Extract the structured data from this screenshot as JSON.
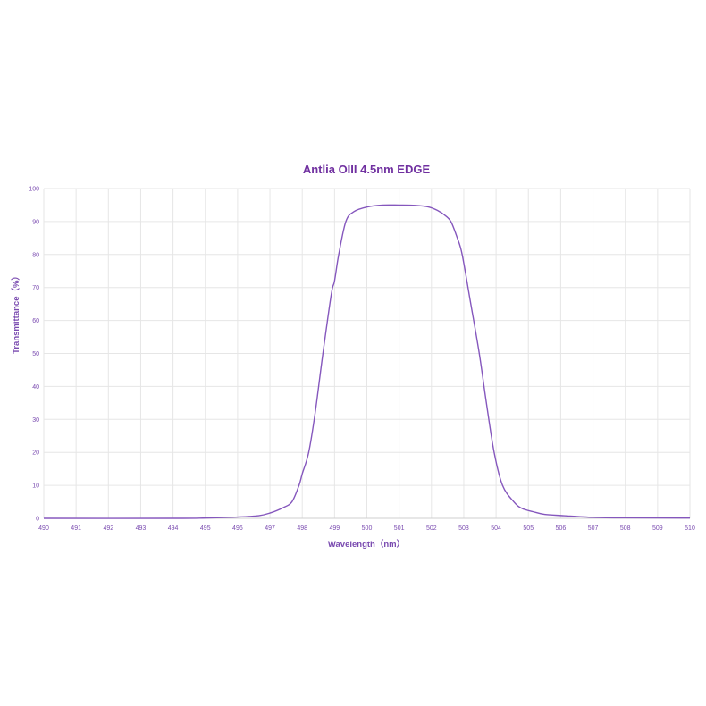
{
  "chart_data": {
    "type": "line",
    "title": "Antlia OIII 4.5nm EDGE",
    "xlabel": "Wavelength（nm）",
    "ylabel": "Transmittance（%）",
    "xlim": [
      490,
      510
    ],
    "ylim": [
      0,
      100
    ],
    "xticks": [
      490,
      491,
      492,
      493,
      494,
      495,
      496,
      497,
      498,
      499,
      500,
      501,
      502,
      503,
      504,
      505,
      506,
      507,
      508,
      509,
      510
    ],
    "yticks": [
      0,
      10,
      20,
      30,
      40,
      50,
      60,
      70,
      80,
      90,
      100
    ],
    "grid": true,
    "colors": {
      "line": "#8557bd",
      "text": "#7030a0",
      "grid": "#e6e6e6"
    },
    "series": [
      {
        "x": [
          490,
          494,
          495,
          496,
          496.65,
          497,
          497.4,
          497.68,
          497.9,
          498,
          498.2,
          498.4,
          498.64,
          498.9,
          499,
          499.13,
          499.35,
          499.6,
          500,
          500.5,
          501,
          501.5,
          501.92,
          502.2,
          502.4,
          502.6,
          502.8,
          502.95,
          503.2,
          503.48,
          503.7,
          503.94,
          504.2,
          504.55,
          504.8,
          505.15,
          505.5,
          506.1,
          507,
          508,
          510
        ],
        "y": [
          0,
          0,
          0.1,
          0.4,
          0.8,
          1.6,
          3.2,
          5,
          10,
          13.5,
          20,
          32,
          50,
          68,
          72,
          80,
          90,
          93,
          94.4,
          95,
          95,
          94.9,
          94.4,
          93.3,
          92,
          90,
          85,
          80,
          66,
          50,
          35,
          20,
          10,
          5,
          3,
          2,
          1.2,
          0.8,
          0.3,
          0.15,
          0.1
        ]
      }
    ]
  }
}
